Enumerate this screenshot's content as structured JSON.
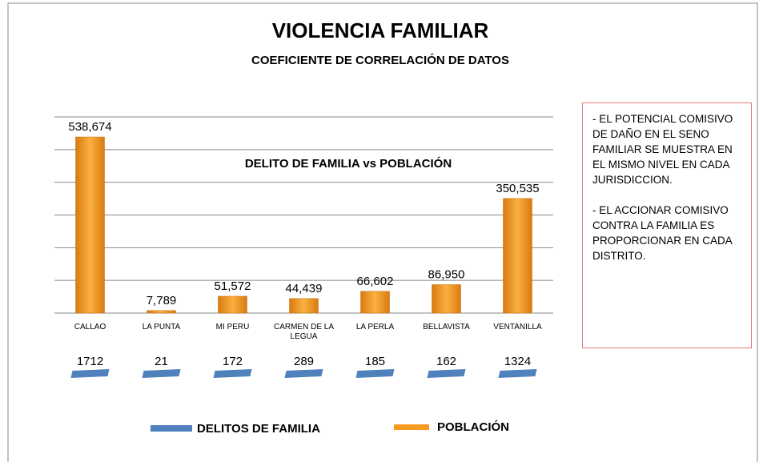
{
  "chart_data": {
    "type": "bar",
    "title": "VIOLENCIA FAMILIAR",
    "subtitle": "COEFICIENTE DE CORRELACIÓN DE DATOS",
    "plot_title": "DELITO DE FAMILIA vs POBLACIÓN",
    "categories": [
      "CALLAO",
      "LA PUNTA",
      "MI PERU",
      "CARMEN DE LA LEGUA",
      "LA PERLA",
      "BELLAVISTA",
      "VENTANILLA"
    ],
    "series": [
      {
        "name": "DELITOS DE FAMILIA",
        "color": "#4f81bd",
        "values": [
          1712,
          21,
          172,
          289,
          185,
          162,
          1324
        ]
      },
      {
        "name": "POBLACIÓN",
        "color": "#f79a1e",
        "values": [
          538674,
          7789,
          51572,
          44439,
          66602,
          86950,
          350535
        ],
        "value_labels": [
          "538,674",
          "7,789",
          "51,572",
          "44,439",
          "66,602",
          "86,950",
          "350,535"
        ]
      }
    ],
    "ylim": [
      0,
      600000
    ],
    "yticks": [
      0,
      100000,
      200000,
      300000,
      400000,
      500000,
      600000
    ],
    "grid": true,
    "legend": "bottom",
    "annotations": [
      "- EL POTENCIAL COMISIVO DE DAÑO EN EL SENO FAMILIAR SE MUESTRA EN EL MISMO NIVEL EN CADA JURISDICCION.",
      "- EL ACCIONAR COMISIVO CONTRA LA FAMILIA ES PROPORCIONAR EN CADA DISTRITO."
    ]
  }
}
